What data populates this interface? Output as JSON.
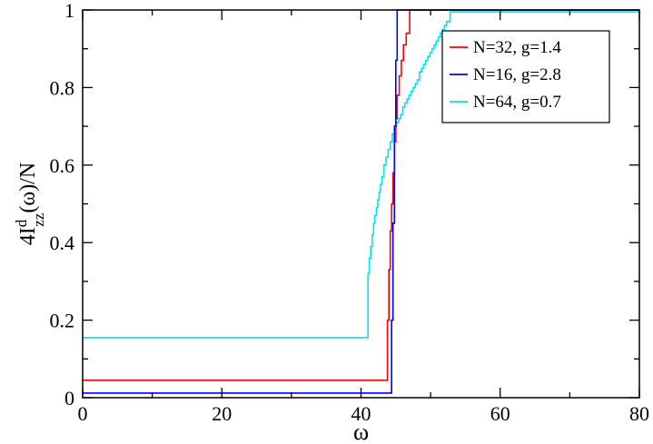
{
  "chart_data": {
    "type": "line",
    "xlabel": "ω",
    "ylabel": {
      "base": "4I",
      "sup": "d",
      "sub": "zz",
      "rest": "(ω)/N"
    },
    "xlim": [
      0,
      80
    ],
    "ylim": [
      0,
      1
    ],
    "x_ticks": [
      "0",
      "20",
      "40",
      "60",
      "80"
    ],
    "y_ticks": [
      "0",
      "0.2",
      "0.4",
      "0.6",
      "0.8",
      "1"
    ],
    "grid": false,
    "legend_position": "top-right",
    "series": [
      {
        "name": "N=32, g=1.4",
        "color": "#ff0000",
        "step": true,
        "x": [
          0,
          43.8,
          44.0,
          44.2,
          44.4,
          44.6,
          44.8,
          45.0,
          45.2,
          45.5,
          45.8,
          46.1,
          46.5,
          47.0,
          80
        ],
        "y": [
          0.045,
          0.2,
          0.33,
          0.43,
          0.5,
          0.58,
          0.66,
          0.72,
          0.78,
          0.83,
          0.87,
          0.91,
          0.94,
          1.0,
          1.0
        ]
      },
      {
        "name": "N=16, g=2.8",
        "color": "#0000ff",
        "step": true,
        "x": [
          0,
          44.4,
          44.6,
          44.8,
          45.0,
          45.2,
          80
        ],
        "y": [
          0.012,
          0.2,
          0.45,
          0.7,
          0.87,
          1.0,
          1.0
        ]
      },
      {
        "name": "N=64, g=0.7",
        "color": "#00e5e5",
        "step": true,
        "x": [
          0,
          41.0,
          41.2,
          41.4,
          41.6,
          41.8,
          42.0,
          42.2,
          42.4,
          42.6,
          42.8,
          43.0,
          43.3,
          43.6,
          43.9,
          44.2,
          44.5,
          44.8,
          45.1,
          45.4,
          45.7,
          46.0,
          46.3,
          46.6,
          46.9,
          47.2,
          47.5,
          47.8,
          48.1,
          48.4,
          48.7,
          49.0,
          49.3,
          49.6,
          49.9,
          50.2,
          50.5,
          50.8,
          51.1,
          51.4,
          51.7,
          52.0,
          52.3,
          52.8,
          80
        ],
        "y": [
          0.155,
          0.32,
          0.36,
          0.39,
          0.42,
          0.45,
          0.47,
          0.49,
          0.51,
          0.53,
          0.55,
          0.57,
          0.6,
          0.62,
          0.64,
          0.66,
          0.68,
          0.7,
          0.71,
          0.72,
          0.73,
          0.75,
          0.76,
          0.77,
          0.78,
          0.79,
          0.8,
          0.81,
          0.82,
          0.84,
          0.85,
          0.86,
          0.87,
          0.88,
          0.89,
          0.9,
          0.91,
          0.92,
          0.93,
          0.94,
          0.95,
          0.96,
          0.97,
          0.995,
          1.0
        ]
      }
    ]
  }
}
